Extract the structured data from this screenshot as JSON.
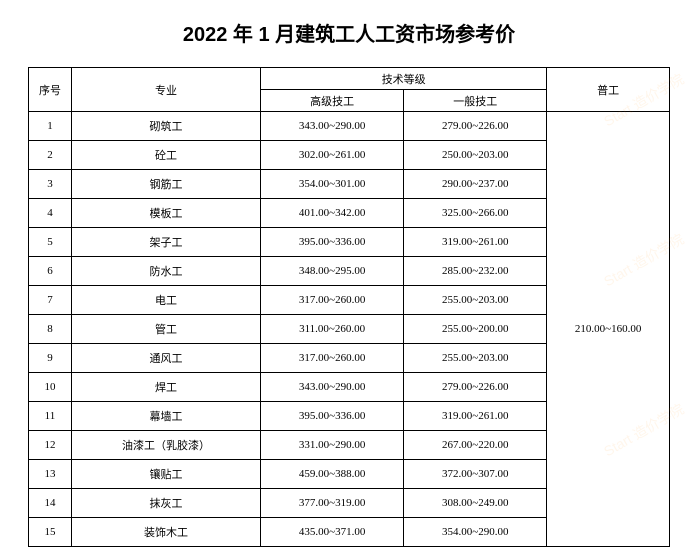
{
  "title": "2022 年 1 月建筑工人工资市场参考价",
  "headers": {
    "seq": "序号",
    "profession": "专业",
    "skill_level": "技术等级",
    "senior": "高级技工",
    "regular": "一般技工",
    "general": "普工"
  },
  "general_worker_value": "210.00~160.00",
  "rows": [
    {
      "seq": "1",
      "profession": "砌筑工",
      "senior": "343.00~290.00",
      "regular": "279.00~226.00"
    },
    {
      "seq": "2",
      "profession": "砼工",
      "senior": "302.00~261.00",
      "regular": "250.00~203.00"
    },
    {
      "seq": "3",
      "profession": "钢筋工",
      "senior": "354.00~301.00",
      "regular": "290.00~237.00"
    },
    {
      "seq": "4",
      "profession": "模板工",
      "senior": "401.00~342.00",
      "regular": "325.00~266.00"
    },
    {
      "seq": "5",
      "profession": "架子工",
      "senior": "395.00~336.00",
      "regular": "319.00~261.00"
    },
    {
      "seq": "6",
      "profession": "防水工",
      "senior": "348.00~295.00",
      "regular": "285.00~232.00"
    },
    {
      "seq": "7",
      "profession": "电工",
      "senior": "317.00~260.00",
      "regular": "255.00~203.00"
    },
    {
      "seq": "8",
      "profession": "管工",
      "senior": "311.00~260.00",
      "regular": "255.00~200.00"
    },
    {
      "seq": "9",
      "profession": "通风工",
      "senior": "317.00~260.00",
      "regular": "255.00~203.00"
    },
    {
      "seq": "10",
      "profession": "焊工",
      "senior": "343.00~290.00",
      "regular": "279.00~226.00"
    },
    {
      "seq": "11",
      "profession": "幕墙工",
      "senior": "395.00~336.00",
      "regular": "319.00~261.00"
    },
    {
      "seq": "12",
      "profession": "油漆工（乳胶漆）",
      "senior": "331.00~290.00",
      "regular": "267.00~220.00"
    },
    {
      "seq": "13",
      "profession": "镶贴工",
      "senior": "459.00~388.00",
      "regular": "372.00~307.00"
    },
    {
      "seq": "14",
      "profession": "抹灰工",
      "senior": "377.00~319.00",
      "regular": "308.00~249.00"
    },
    {
      "seq": "15",
      "profession": "装饰木工",
      "senior": "435.00~371.00",
      "regular": "354.00~290.00"
    }
  ],
  "watermark_text": "Start 造价学院"
}
